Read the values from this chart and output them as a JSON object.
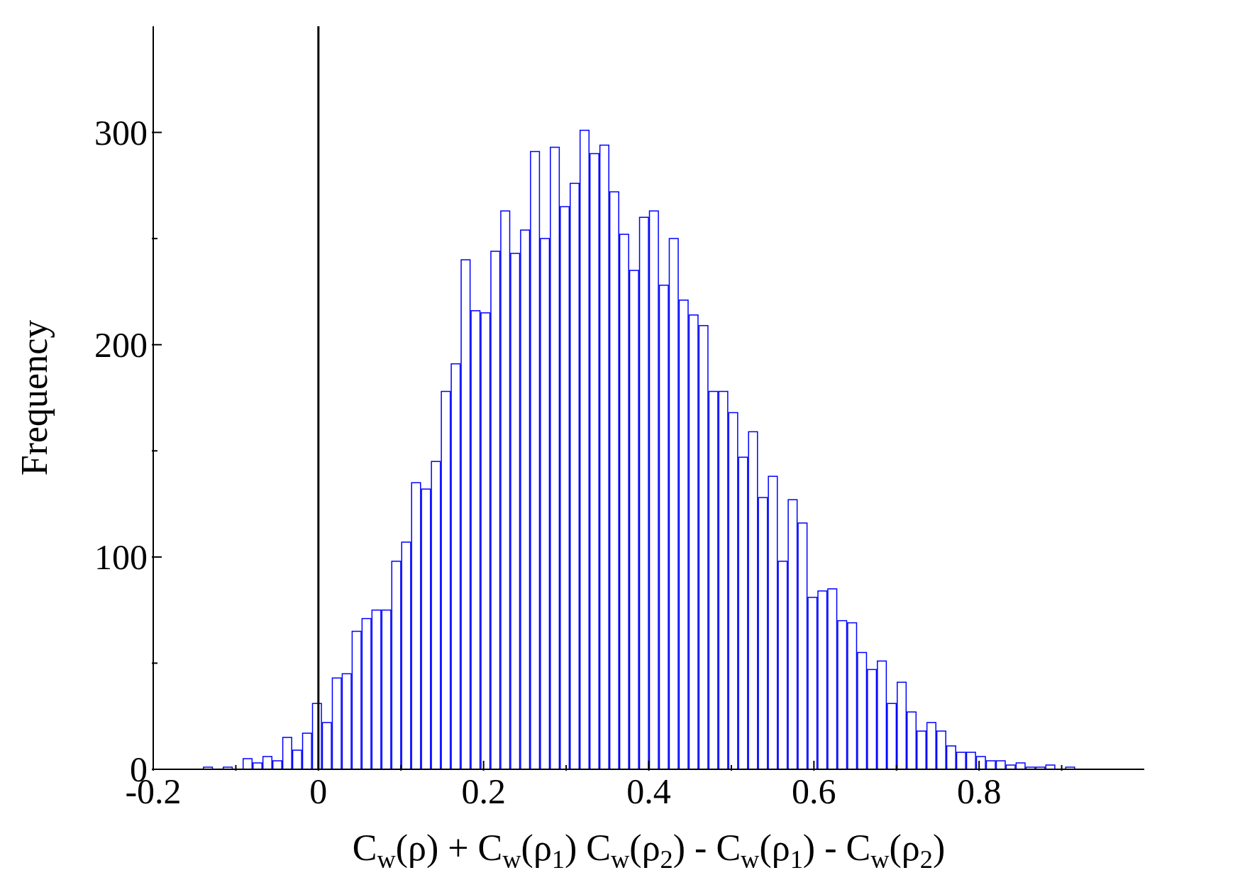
{
  "chart_data": {
    "type": "histogram",
    "xlabel": "C$_{w}$(ρ) + C$_{w}$(ρ$_{1}$) C$_{w}$(ρ$_{2}$) - C$_{w}$(ρ$_{1}$) - C$_{w}$(ρ$_{2}$)",
    "ylabel": "Frequency",
    "bins": [
      -0.14,
      -0.128,
      -0.116,
      -0.104,
      -0.092,
      -0.08,
      -0.068,
      -0.056,
      -0.044,
      -0.032,
      -0.02,
      -0.008,
      0.004,
      0.016,
      0.028,
      0.04,
      0.052,
      0.064,
      0.076,
      0.088,
      0.1,
      0.112,
      0.124,
      0.136,
      0.148,
      0.16,
      0.172,
      0.184,
      0.196,
      0.208,
      0.22,
      0.232,
      0.244,
      0.256,
      0.268,
      0.28,
      0.292,
      0.304,
      0.316,
      0.328,
      0.34,
      0.352,
      0.364,
      0.376,
      0.388,
      0.4,
      0.412,
      0.424,
      0.436,
      0.448,
      0.46,
      0.472,
      0.484,
      0.496,
      0.508,
      0.52,
      0.532,
      0.544,
      0.556,
      0.568,
      0.58,
      0.592,
      0.604,
      0.616,
      0.628,
      0.64,
      0.652,
      0.664,
      0.676,
      0.688,
      0.7,
      0.712,
      0.724,
      0.736,
      0.748,
      0.76,
      0.772,
      0.784,
      0.796,
      0.808,
      0.82,
      0.832,
      0.844,
      0.856,
      0.868,
      0.88,
      0.892,
      0.904,
      0.916
    ],
    "values": [
      1,
      0,
      1,
      0,
      5,
      3,
      6,
      4,
      15,
      9,
      17,
      31,
      22,
      43,
      45,
      65,
      71,
      75,
      75,
      98,
      107,
      135,
      132,
      145,
      178,
      191,
      240,
      216,
      215,
      244,
      263,
      243,
      254,
      291,
      250,
      293,
      265,
      276,
      301,
      290,
      294,
      272,
      252,
      235,
      260,
      263,
      228,
      250,
      221,
      214,
      209,
      178,
      178,
      168,
      147,
      159,
      128,
      138,
      98,
      127,
      116,
      81,
      84,
      85,
      70,
      69,
      55,
      47,
      51,
      31,
      41,
      27,
      18,
      22,
      18,
      11,
      8,
      8,
      6,
      4,
      4,
      2,
      3,
      1,
      1,
      2,
      0,
      1
    ],
    "color": "#0000ff",
    "xlim": [
      -0.2,
      1.0
    ],
    "xticks": [
      -0.2,
      {
        "value": -0.1,
        "label": null
      },
      0,
      {
        "value": 0.1,
        "label": null
      },
      0.2,
      {
        "value": 0.3,
        "label": null
      },
      0.4,
      {
        "value": 0.5,
        "label": null
      },
      0.6,
      {
        "value": 0.7,
        "label": null
      },
      0.8,
      {
        "value": 0.9,
        "label": null
      }
    ],
    "ylim": [
      0,
      350
    ],
    "yticks": [
      0,
      {
        "value": 50,
        "label": null
      },
      100,
      {
        "value": 150,
        "label": null
      },
      200,
      {
        "value": 250,
        "label": null
      },
      300
    ],
    "ref_lines": [
      {
        "axis": "x",
        "value": 0,
        "color": "#000000"
      }
    ],
    "grid": false,
    "legend": false
  }
}
